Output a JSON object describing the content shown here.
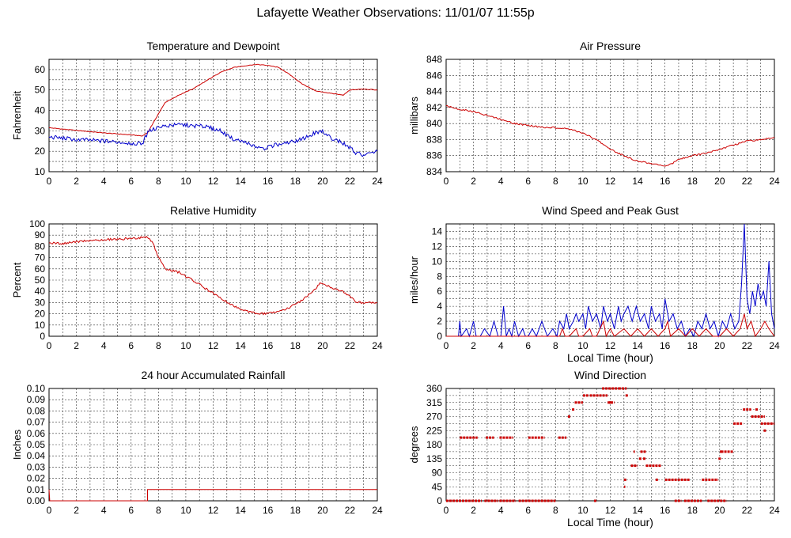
{
  "page": {
    "title": "Lafayette Weather Observations: 11/01/07 11:55p"
  },
  "chart_data": [
    {
      "id": "temp",
      "type": "line",
      "title": "Temperature and Dewpoint",
      "xlabel": "",
      "ylabel": "Fahrenheit",
      "xlim": [
        0,
        24
      ],
      "ylim": [
        10,
        65
      ],
      "xticks": [
        0,
        2,
        4,
        6,
        8,
        10,
        12,
        14,
        16,
        18,
        20,
        22,
        24
      ],
      "yticks": [
        10,
        20,
        30,
        40,
        50,
        60
      ],
      "ygrid": [
        10,
        15,
        20,
        25,
        30,
        35,
        40,
        45,
        50,
        55,
        60,
        65
      ],
      "xgrid": [
        0,
        1,
        2,
        3,
        4,
        5,
        6,
        7,
        8,
        9,
        10,
        11,
        12,
        13,
        14,
        15,
        16,
        17,
        18,
        19,
        20,
        21,
        22,
        23,
        24
      ],
      "grid": true,
      "series": [
        {
          "color": "#cc0000",
          "jitter": 0.15,
          "x": [
            0,
            2,
            4,
            6,
            6.8,
            7.2,
            7.8,
            8.5,
            9.5,
            10.5,
            11.5,
            12.5,
            13.5,
            14.5,
            15.2,
            16,
            16.8,
            17.5,
            18.5,
            19.5,
            20.5,
            21.5,
            22,
            23,
            24
          ],
          "y": [
            31.5,
            30.2,
            29,
            28,
            27.5,
            29,
            36,
            44,
            47.5,
            50.5,
            54.5,
            58.5,
            61,
            62,
            62.5,
            62,
            61,
            58,
            53,
            49.5,
            48.5,
            47.5,
            50,
            50.5,
            50
          ]
        },
        {
          "color": "#0000cc",
          "jitter": 1.0,
          "x": [
            0,
            2,
            4,
            6,
            6.8,
            7.3,
            7.8,
            8.5,
            9.5,
            10.5,
            11.5,
            12.5,
            13.5,
            14.5,
            15.5,
            16.5,
            17.5,
            18.5,
            19.5,
            20,
            20.5,
            21.5,
            22.5,
            23,
            24
          ],
          "y": [
            27,
            25.8,
            25,
            24,
            23.5,
            30,
            31,
            32.5,
            33,
            32.5,
            32,
            30,
            26,
            24,
            21,
            23,
            24,
            26,
            29,
            30,
            27,
            24,
            19,
            18,
            20
          ]
        }
      ]
    },
    {
      "id": "pressure",
      "type": "line",
      "title": "Air Pressure",
      "xlabel": "",
      "ylabel": "millibars",
      "xlim": [
        0,
        24
      ],
      "ylim": [
        834,
        848
      ],
      "xticks": [
        0,
        2,
        4,
        6,
        8,
        10,
        12,
        14,
        16,
        18,
        20,
        22,
        24
      ],
      "yticks": [
        834,
        836,
        838,
        840,
        842,
        844,
        846,
        848
      ],
      "ygrid": [
        834,
        836,
        838,
        840,
        842,
        844,
        846,
        848
      ],
      "xgrid": [
        0,
        1,
        2,
        3,
        4,
        5,
        6,
        7,
        8,
        9,
        10,
        11,
        12,
        13,
        14,
        15,
        16,
        17,
        18,
        19,
        20,
        21,
        22,
        23,
        24
      ],
      "grid": true,
      "series": [
        {
          "color": "#cc0000",
          "jitter": 0.1,
          "x": [
            0,
            1,
            2,
            3,
            4,
            5,
            6,
            7,
            8,
            9,
            10,
            11,
            12,
            13,
            14,
            15,
            16,
            16.5,
            17,
            18,
            19,
            20,
            21,
            22,
            23,
            24
          ],
          "y": [
            842.2,
            841.8,
            841.5,
            841,
            840.5,
            840,
            839.8,
            839.5,
            839.5,
            839.3,
            838.8,
            838,
            836.8,
            836,
            835.3,
            835,
            834.7,
            835,
            835.5,
            836,
            836.3,
            836.8,
            837.3,
            837.8,
            838,
            838.3
          ]
        }
      ]
    },
    {
      "id": "humidity",
      "type": "line",
      "title": "Relative Humidity",
      "xlabel": "",
      "ylabel": "Percent",
      "xlim": [
        0,
        24
      ],
      "ylim": [
        0,
        100
      ],
      "xticks": [
        0,
        2,
        4,
        6,
        8,
        10,
        12,
        14,
        16,
        18,
        20,
        22,
        24
      ],
      "yticks": [
        0,
        10,
        20,
        30,
        40,
        50,
        60,
        70,
        80,
        90,
        100
      ],
      "ygrid": [
        0,
        10,
        20,
        30,
        40,
        50,
        60,
        70,
        80,
        90,
        100
      ],
      "xgrid": [
        0,
        1,
        2,
        3,
        4,
        5,
        6,
        7,
        8,
        9,
        10,
        11,
        12,
        13,
        14,
        15,
        16,
        17,
        18,
        19,
        20,
        21,
        22,
        23,
        24
      ],
      "grid": true,
      "series": [
        {
          "color": "#cc0000",
          "jitter": 1.0,
          "x": [
            0,
            1,
            2,
            3,
            4,
            5,
            6,
            6.8,
            7.2,
            7.6,
            8,
            8.5,
            9.5,
            10.5,
            11.5,
            12.5,
            13.5,
            14.5,
            15.5,
            16.5,
            17.5,
            18.5,
            19.5,
            19.8,
            20.5,
            21.5,
            22.5,
            24
          ],
          "y": [
            83,
            82.5,
            84,
            85,
            86,
            86.5,
            87,
            88,
            88,
            83,
            70,
            60,
            57,
            50,
            42,
            34,
            27,
            22,
            20,
            21,
            25,
            32,
            42,
            48,
            44,
            40,
            30,
            30
          ]
        }
      ]
    },
    {
      "id": "wind",
      "type": "line",
      "title": "Wind Speed and Peak Gust",
      "xlabel": "Local Time (hour)",
      "ylabel": "miles/hour",
      "xlim": [
        0,
        24
      ],
      "ylim": [
        0,
        15
      ],
      "xticks": [
        0,
        2,
        4,
        6,
        8,
        10,
        12,
        14,
        16,
        18,
        20,
        22,
        24
      ],
      "yticks": [
        0,
        2,
        4,
        6,
        8,
        10,
        12,
        14
      ],
      "ygrid": [
        0,
        1,
        2,
        3,
        4,
        5,
        6,
        7,
        8,
        9,
        10,
        11,
        12,
        13,
        14,
        15
      ],
      "xgrid": [
        0,
        1,
        2,
        3,
        4,
        5,
        6,
        7,
        8,
        9,
        10,
        11,
        12,
        13,
        14,
        15,
        16,
        17,
        18,
        19,
        20,
        21,
        22,
        23,
        24
      ],
      "grid": true,
      "series": [
        {
          "color": "#0000cc",
          "jitter": 0,
          "x": [
            0,
            0.9,
            1,
            1.1,
            1.5,
            1.7,
            2,
            2.2,
            2.5,
            2.8,
            3.2,
            3.5,
            3.8,
            4,
            4.2,
            4.4,
            4.6,
            4.8,
            5,
            5.3,
            5.6,
            5.8,
            6,
            6.3,
            6.6,
            7,
            7.4,
            7.8,
            8.1,
            8.3,
            8.6,
            8.8,
            9,
            9.3,
            9.5,
            9.7,
            10,
            10.2,
            10.4,
            10.7,
            11,
            11.3,
            11.5,
            11.8,
            12,
            12.3,
            12.6,
            12.8,
            13,
            13.3,
            13.6,
            13.9,
            14.2,
            14.5,
            14.8,
            15,
            15.3,
            15.6,
            15.8,
            16,
            16.3,
            16.6,
            16.9,
            17.2,
            17.5,
            17.8,
            18.1,
            18.4,
            18.7,
            19,
            19.3,
            19.6,
            19.9,
            20.2,
            20.5,
            20.8,
            21.1,
            21.4,
            21.6,
            21.8,
            22,
            22.2,
            22.4,
            22.6,
            22.8,
            23,
            23.2,
            23.4,
            23.6,
            23.8,
            24
          ],
          "y": [
            0,
            0,
            2,
            0,
            1,
            0,
            2,
            0,
            0,
            1,
            0,
            2,
            0,
            0,
            4,
            0,
            1,
            0,
            2,
            0,
            1,
            0,
            0,
            1,
            0,
            2,
            0,
            1,
            0,
            2,
            1,
            3,
            1,
            2,
            3,
            2,
            3,
            1,
            4,
            2,
            3,
            1,
            4,
            2,
            3,
            1,
            4,
            2,
            3,
            4,
            2,
            4,
            2,
            3,
            1,
            4,
            2,
            3,
            1,
            5,
            2,
            3,
            1,
            2,
            0,
            1,
            0,
            2,
            1,
            3,
            1,
            2,
            0,
            2,
            1,
            3,
            1,
            2,
            7,
            15,
            5,
            3,
            6,
            4,
            7,
            5,
            6,
            4,
            10,
            3,
            1
          ]
        },
        {
          "color": "#cc0000",
          "jitter": 0,
          "x": [
            0,
            8.3,
            8.5,
            8.7,
            9,
            9.5,
            9.7,
            10,
            10.5,
            10.7,
            11,
            11.5,
            11.7,
            12,
            12.3,
            13,
            13.5,
            14,
            14.5,
            15,
            15.5,
            16,
            16.2,
            16.4,
            17,
            17.5,
            18,
            18.5,
            19,
            19.5,
            20,
            20.5,
            21,
            21.5,
            21.8,
            22,
            22.3,
            22.6,
            23,
            23.3,
            23.6,
            24
          ],
          "y": [
            0,
            0,
            1,
            0,
            0,
            1,
            0,
            0,
            1,
            0,
            0,
            2,
            0,
            1,
            0,
            1,
            0,
            1,
            0,
            1,
            0,
            1,
            2,
            0,
            1,
            0,
            1,
            0,
            1,
            0,
            0,
            1,
            0,
            1,
            3,
            1,
            2,
            0,
            1,
            2,
            1,
            0
          ]
        }
      ]
    },
    {
      "id": "rain",
      "type": "line",
      "title": "24 hour Accumulated Rainfall",
      "xlabel": "",
      "ylabel": "Inches",
      "xlim": [
        0,
        24
      ],
      "ylim": [
        0,
        0.1
      ],
      "xticks": [
        0,
        2,
        4,
        6,
        8,
        10,
        12,
        14,
        16,
        18,
        20,
        22,
        24
      ],
      "yticks": [
        0,
        0.01,
        0.02,
        0.03,
        0.04,
        0.05,
        0.06,
        0.07,
        0.08,
        0.09,
        0.1
      ],
      "ytick_labels": [
        "0.00",
        "0.01",
        "0.02",
        "0.03",
        "0.04",
        "0.05",
        "0.06",
        "0.07",
        "0.08",
        "0.09",
        "0.10"
      ],
      "ygrid": [
        0,
        0.01,
        0.02,
        0.03,
        0.04,
        0.05,
        0.06,
        0.07,
        0.08,
        0.09,
        0.1
      ],
      "xgrid": [
        0,
        1,
        2,
        3,
        4,
        5,
        6,
        7,
        8,
        9,
        10,
        11,
        12,
        13,
        14,
        15,
        16,
        17,
        18,
        19,
        20,
        21,
        22,
        23,
        24
      ],
      "grid": true,
      "series": [
        {
          "color": "#cc0000",
          "jitter": 0,
          "x": [
            0,
            0,
            0.05,
            7.2,
            7.2,
            24
          ],
          "y": [
            0.01,
            0.01,
            0,
            0,
            0.01,
            0.01
          ]
        }
      ]
    },
    {
      "id": "winddir",
      "type": "scatter",
      "title": "Wind Direction",
      "xlabel": "Local Time (hour)",
      "ylabel": "degrees",
      "xlim": [
        0,
        24
      ],
      "ylim": [
        0,
        360
      ],
      "xticks": [
        0,
        2,
        4,
        6,
        8,
        10,
        12,
        14,
        16,
        18,
        20,
        22,
        24
      ],
      "yticks": [
        0,
        45,
        90,
        135,
        180,
        225,
        270,
        315,
        360
      ],
      "ygrid": [
        0,
        22.5,
        45,
        67.5,
        90,
        112.5,
        135,
        157.5,
        180,
        202.5,
        225,
        247.5,
        270,
        292.5,
        315,
        337.5,
        360
      ],
      "xgrid": [
        0,
        1,
        2,
        3,
        4,
        5,
        6,
        7,
        8,
        9,
        10,
        11,
        12,
        13,
        14,
        15,
        16,
        17,
        18,
        19,
        20,
        21,
        22,
        23,
        24
      ],
      "grid": true,
      "segments": [
        [
          0,
          2.6,
          0
        ],
        [
          1.0,
          2.3,
          202.5
        ],
        [
          2.8,
          3.8,
          0
        ],
        [
          2.9,
          3.5,
          202.5
        ],
        [
          3.9,
          5.1,
          0
        ],
        [
          3.9,
          4.9,
          202.5
        ],
        [
          5.3,
          8.0,
          0
        ],
        [
          6.0,
          7.2,
          202.5
        ],
        [
          8.2,
          8.8,
          202.5
        ],
        [
          8.9,
          9.1,
          270
        ],
        [
          9.2,
          9.4,
          292.5
        ],
        [
          9.4,
          10.0,
          315
        ],
        [
          10.0,
          10.4,
          337.5
        ],
        [
          10.5,
          11.8,
          337.5
        ],
        [
          11.8,
          12.3,
          315
        ],
        [
          11.4,
          12.6,
          360
        ],
        [
          12.6,
          13.2,
          360
        ],
        [
          13.0,
          13.2,
          67.5
        ],
        [
          13.0,
          13.1,
          45
        ],
        [
          13.5,
          14.0,
          112.5
        ],
        [
          13.7,
          13.8,
          157.5
        ],
        [
          14.1,
          14.3,
          135
        ],
        [
          14.2,
          14.6,
          157.5
        ],
        [
          14.4,
          14.6,
          135
        ],
        [
          14.6,
          15.7,
          112.5
        ],
        [
          16.0,
          17.8,
          67.5
        ],
        [
          16.7,
          17.2,
          0
        ],
        [
          17.4,
          18.7,
          0
        ],
        [
          18.7,
          19.9,
          67.5
        ],
        [
          19.1,
          20.5,
          0
        ],
        [
          20.1,
          21.0,
          157.5
        ],
        [
          21.0,
          21.7,
          247.5
        ],
        [
          21.7,
          22.3,
          292.5
        ],
        [
          22.3,
          23.3,
          270
        ],
        [
          23.0,
          24.0,
          247.5
        ]
      ],
      "points": [
        [
          10.9,
          0
        ],
        [
          12.0,
          315
        ],
        [
          15.4,
          67.5
        ],
        [
          20.0,
          135
        ],
        [
          20.1,
          157.5
        ],
        [
          23.3,
          225
        ],
        [
          22.7,
          292.5
        ],
        [
          13.2,
          337.5
        ]
      ]
    }
  ]
}
